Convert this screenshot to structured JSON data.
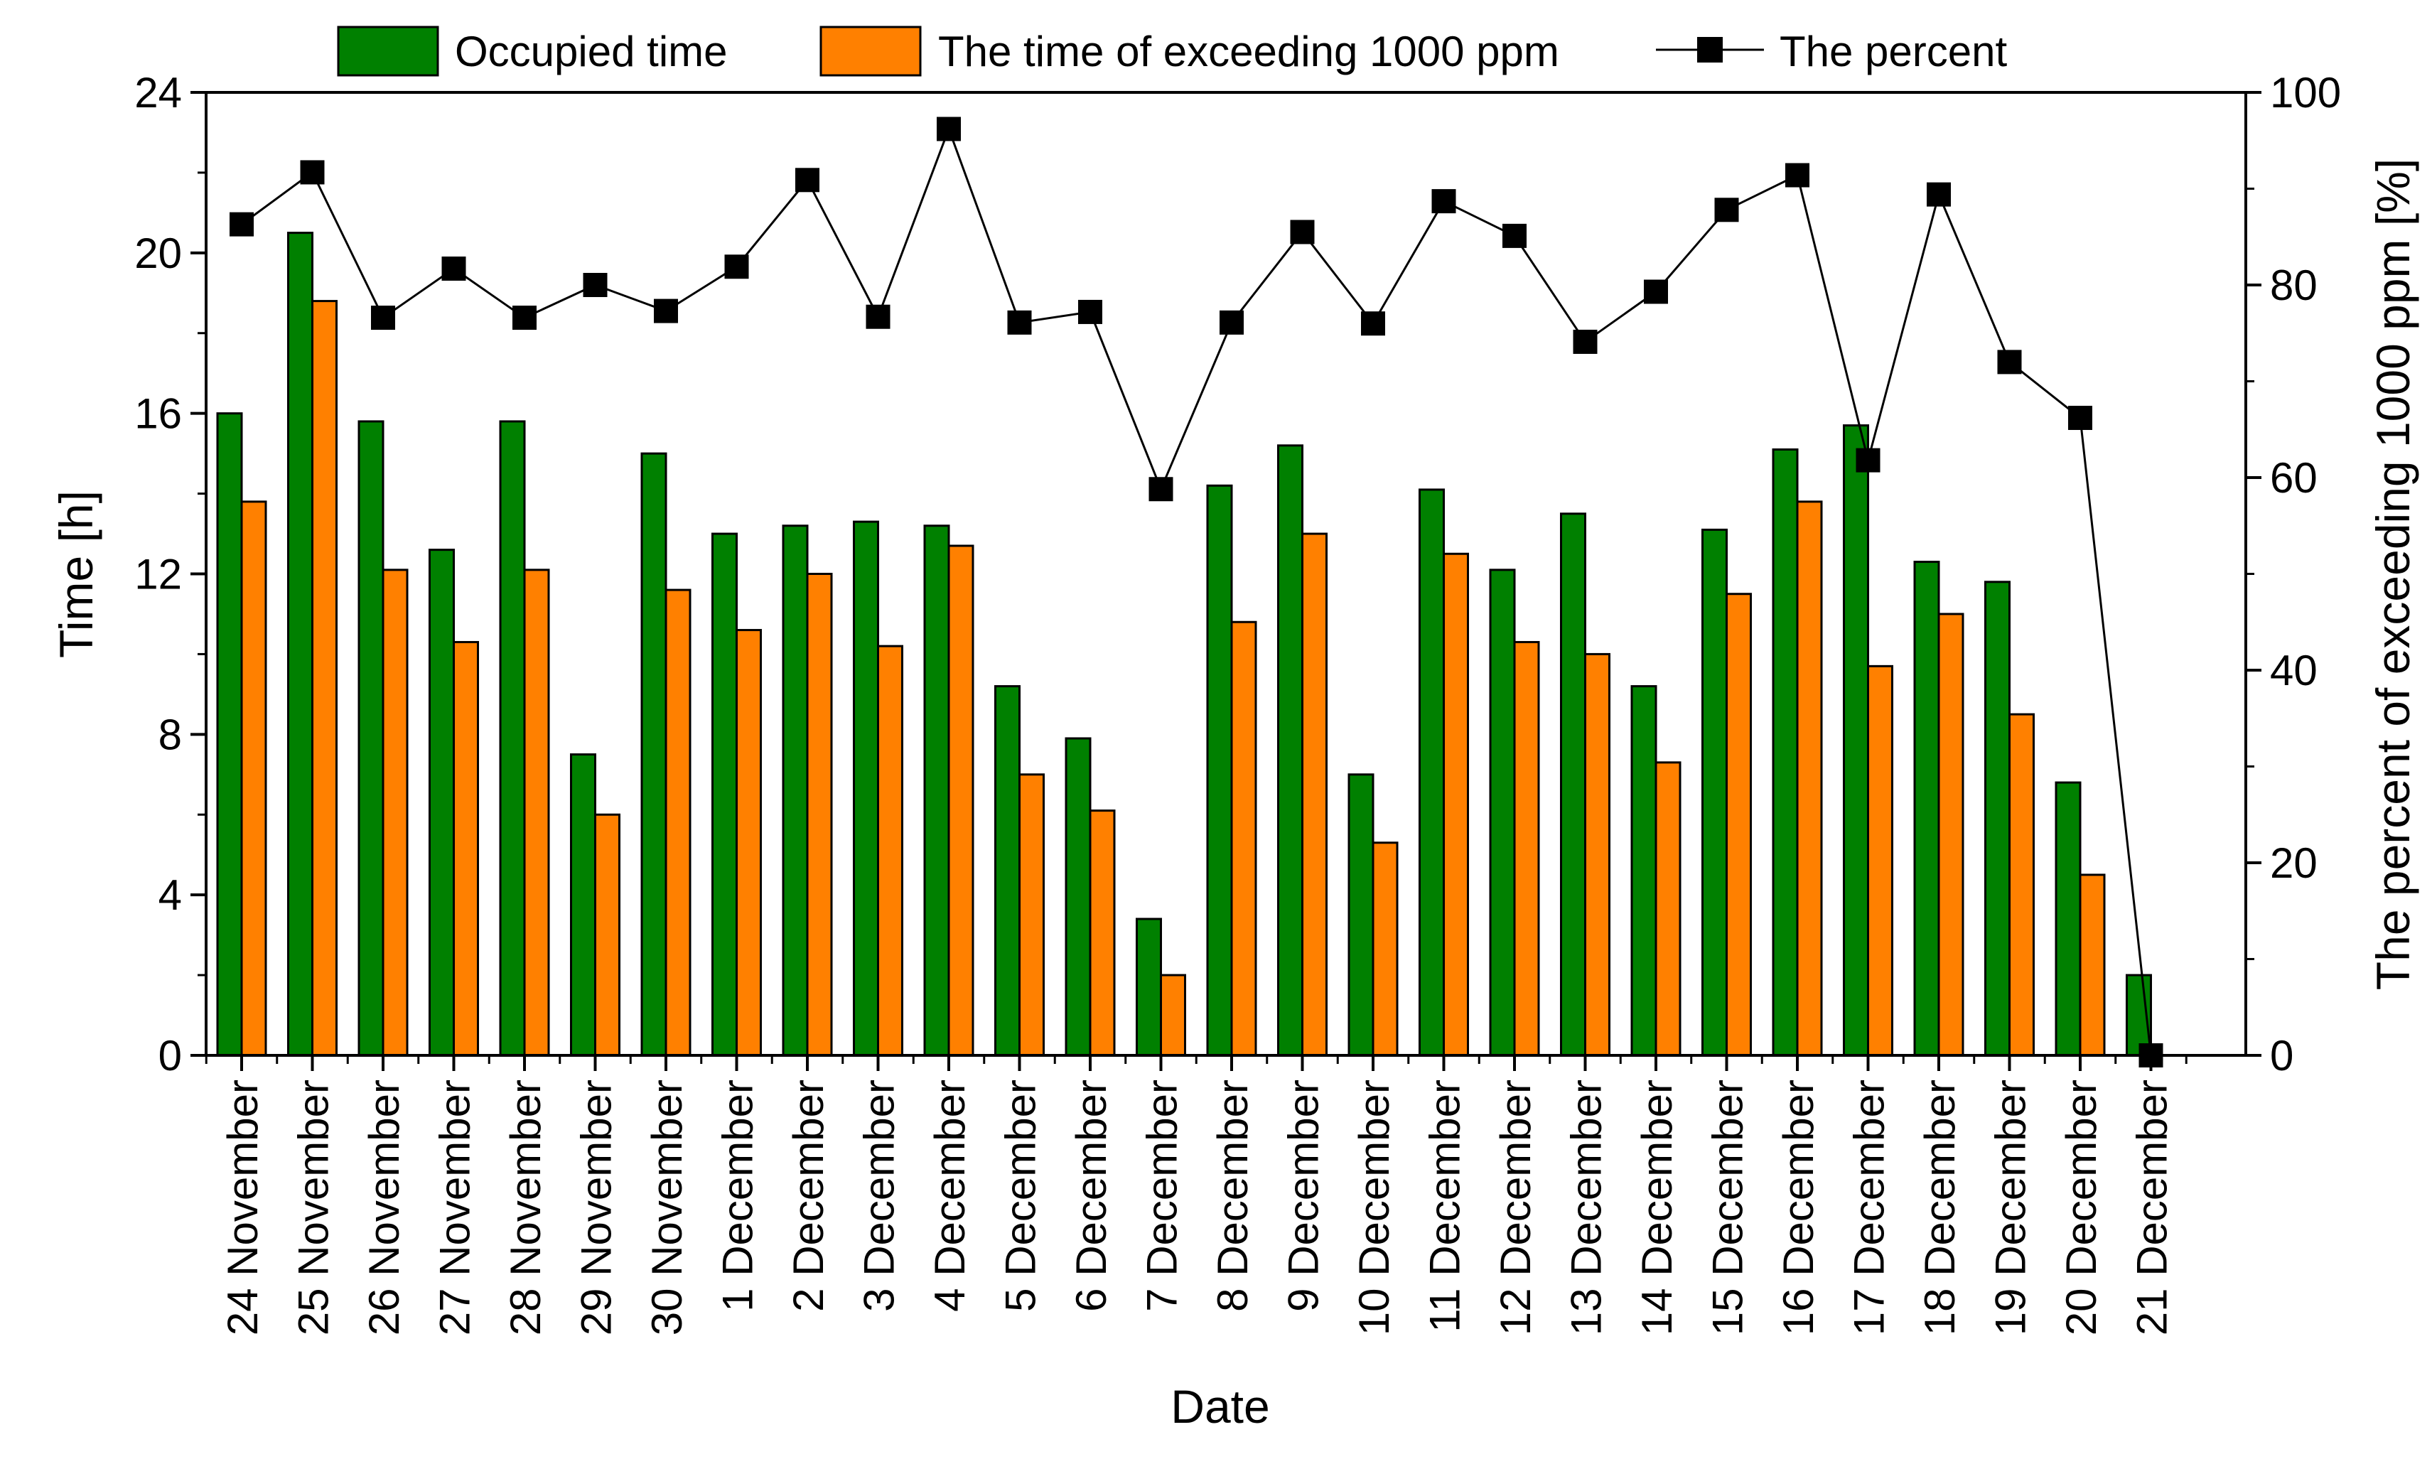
{
  "chart_data": {
    "type": "bar",
    "title": "",
    "xlabel": "Date",
    "ylabel": "Time [h]",
    "y2label": "The percent of exceeding 1000 ppm [%]",
    "ylim": [
      0,
      24
    ],
    "y2lim": [
      0,
      100
    ],
    "yticks": [
      "0",
      "4",
      "8",
      "12",
      "16",
      "20",
      "24"
    ],
    "y2ticks": [
      "0",
      "20",
      "40",
      "60",
      "80",
      "100"
    ],
    "legend_position": "top",
    "grid": false,
    "categories": [
      "24 November",
      "25 November",
      "26 November",
      "27 November",
      "28 November",
      "29 November",
      "30 November",
      "1 December",
      "2 December",
      "3 December",
      "4 December",
      "5 December",
      "6 December",
      "7 December",
      "8 December",
      "9 December",
      "10 December",
      "11 December",
      "12 December",
      "13 December",
      "14 December",
      "15 December",
      "16 December",
      "17 December",
      "18 December",
      "19 December",
      "20 December",
      "21 December"
    ],
    "series": [
      {
        "name": "Occupied time",
        "type": "bar",
        "axis": "left",
        "color": "#008000",
        "values": [
          16.0,
          20.5,
          15.8,
          12.6,
          15.8,
          7.5,
          15.0,
          13.0,
          13.2,
          13.3,
          13.2,
          9.2,
          7.9,
          3.4,
          14.2,
          15.2,
          7.0,
          14.1,
          12.1,
          13.5,
          9.2,
          13.1,
          15.1,
          15.7,
          12.3,
          11.8,
          6.8,
          2.0
        ]
      },
      {
        "name": "The time of exceeding 1000 ppm",
        "type": "bar",
        "axis": "left",
        "color": "#FF8000",
        "values": [
          13.8,
          18.8,
          12.1,
          10.3,
          12.1,
          6.0,
          11.6,
          10.6,
          12.0,
          10.2,
          12.7,
          7.0,
          6.1,
          2.0,
          10.8,
          13.0,
          5.3,
          12.5,
          10.3,
          10.0,
          7.3,
          11.5,
          13.8,
          9.7,
          11.0,
          8.5,
          4.5,
          0.0
        ]
      },
      {
        "name": "The percent",
        "type": "line",
        "axis": "right",
        "color": "#000000",
        "values": [
          86.3,
          91.7,
          76.6,
          81.7,
          76.6,
          80.0,
          77.3,
          81.9,
          90.9,
          76.7,
          96.2,
          76.1,
          77.2,
          58.8,
          76.1,
          85.5,
          76.0,
          88.7,
          85.1,
          74.1,
          79.3,
          87.8,
          91.4,
          61.8,
          89.4,
          72.0,
          66.2,
          0.0
        ]
      }
    ]
  }
}
